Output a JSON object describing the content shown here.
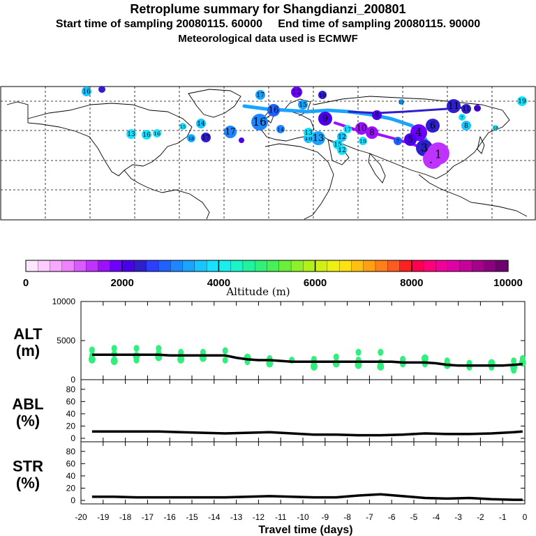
{
  "header": {
    "title": "Retroplume summary for Shangdianzi_200801",
    "line2": "Start time of sampling 20080115. 60000     End time of sampling 20080115. 90000",
    "line3": "Meteorological data used is ECMWF"
  },
  "colorbar": {
    "label": "Altitude (m)",
    "tick_labels": [
      "0",
      "2000",
      "4000",
      "6000",
      "8000",
      "10000"
    ],
    "colors": [
      "#ffe6ff",
      "#ffccff",
      "#f7a8ff",
      "#ee82ff",
      "#d85cff",
      "#c032ff",
      "#9b10ff",
      "#6e00ff",
      "#4a00e8",
      "#2f1ecc",
      "#2b40ff",
      "#1f62ff",
      "#1e86ff",
      "#1aa4ff",
      "#19c4ff",
      "#18e0ff",
      "#18f0ee",
      "#19f5c8",
      "#20f2a0",
      "#2ef07a",
      "#48f058",
      "#6af03a",
      "#8ef028",
      "#b2f01a",
      "#d2f014",
      "#eef010",
      "#ffe010",
      "#ffc010",
      "#ffa010",
      "#ff8018",
      "#ff5a20",
      "#ff2020",
      "#ff0050",
      "#ff007a",
      "#f00098",
      "#e000a8",
      "#c8009c",
      "#a8008c",
      "#8c0080",
      "#6e0070"
    ]
  },
  "map": {
    "cluster_labels": [
      "16",
      "17",
      "12",
      "10",
      "14",
      "15",
      "16",
      "17",
      "16",
      "13",
      "16",
      "15",
      "14",
      "18",
      "17",
      "16",
      "12",
      "17",
      "13",
      "16",
      "9",
      "19",
      "19",
      "15",
      "13",
      "12",
      "11",
      "9",
      "10",
      "8",
      "7",
      "6",
      "4",
      "5",
      "3",
      "2",
      "1",
      "11",
      "10",
      "18",
      "8",
      "7",
      "19",
      "18"
    ]
  },
  "chart_data": [
    {
      "type": "line",
      "panel": "ALT",
      "ylabel": "ALT\n(m)",
      "ylabel_top": "ALT",
      "ylabel_bottom": "(m)",
      "ylim": [
        0,
        10000
      ],
      "xlim": [
        -20,
        0
      ],
      "y_ticks": [
        "0",
        "5000",
        "10000"
      ],
      "x": [
        -19.5,
        -19,
        -18.5,
        -18,
        -17.5,
        -17,
        -16.5,
        -16,
        -15.5,
        -15,
        -14.5,
        -14,
        -13.5,
        -13,
        -12.5,
        -12,
        -11.5,
        -11,
        -10.5,
        -10,
        -9.5,
        -9,
        -8.5,
        -8,
        -7.5,
        -7,
        -6.5,
        -6,
        -5.5,
        -5,
        -4.5,
        -4,
        -3.5,
        -3,
        -2.5,
        -2,
        -1.5,
        -1,
        -0.5,
        -0.1
      ],
      "values": [
        3200,
        3200,
        3200,
        3200,
        3200,
        3200,
        3200,
        3100,
        3100,
        3100,
        3100,
        3100,
        3100,
        2800,
        2600,
        2500,
        2500,
        2400,
        2300,
        2300,
        2300,
        2300,
        2300,
        2300,
        2300,
        2300,
        2300,
        2300,
        2200,
        2200,
        2200,
        2100,
        1900,
        1800,
        1800,
        1800,
        1800,
        1800,
        1900,
        2000
      ],
      "particle_points": [
        [
          -19.5,
          3800
        ],
        [
          -19.5,
          2600
        ],
        [
          -19.5,
          3100
        ],
        [
          -18.5,
          4000
        ],
        [
          -18.5,
          2400
        ],
        [
          -18.5,
          3300
        ],
        [
          -17.5,
          4000
        ],
        [
          -17.5,
          3000
        ],
        [
          -17.5,
          2500
        ],
        [
          -16.5,
          4000
        ],
        [
          -16.5,
          2900
        ],
        [
          -16.5,
          3400
        ],
        [
          -15.5,
          3500
        ],
        [
          -15.5,
          2600
        ],
        [
          -15.5,
          3000
        ],
        [
          -14.5,
          3500
        ],
        [
          -14.5,
          2800
        ],
        [
          -13.5,
          3700
        ],
        [
          -13.5,
          2500
        ],
        [
          -12.5,
          2800
        ],
        [
          -12.5,
          2300
        ],
        [
          -11.5,
          2700
        ],
        [
          -11.5,
          2100
        ],
        [
          -10.5,
          2500
        ],
        [
          -9.5,
          2600
        ],
        [
          -9.5,
          1700
        ],
        [
          -9.5,
          2100
        ],
        [
          -8.5,
          2900
        ],
        [
          -8.5,
          2100
        ],
        [
          -7.5,
          3500
        ],
        [
          -7.5,
          2500
        ],
        [
          -7.5,
          1900
        ],
        [
          -6.5,
          3500
        ],
        [
          -6.5,
          2200
        ],
        [
          -6.5,
          1700
        ],
        [
          -5.5,
          2600
        ],
        [
          -5.5,
          2000
        ],
        [
          -4.5,
          2700
        ],
        [
          -4.5,
          2000
        ],
        [
          -3.5,
          2400
        ],
        [
          -3.5,
          1900
        ],
        [
          -2.5,
          2100
        ],
        [
          -2.5,
          1600
        ],
        [
          -1.5,
          2100
        ],
        [
          -1.5,
          1600
        ],
        [
          -0.5,
          2400
        ],
        [
          -0.5,
          1600
        ],
        [
          -0.5,
          1200
        ],
        [
          -0.1,
          2700
        ],
        [
          -0.1,
          2200
        ]
      ]
    },
    {
      "type": "line",
      "panel": "ABL",
      "ylabel_top": "ABL",
      "ylabel_bottom": "(%)",
      "ylim": [
        0,
        90
      ],
      "xlim": [
        -20,
        0
      ],
      "y_ticks": [
        "0",
        "20",
        "40",
        "60",
        "80"
      ],
      "x": [
        -19.5,
        -18.5,
        -17.5,
        -16.5,
        -15.5,
        -14.5,
        -13.5,
        -12.5,
        -11.5,
        -10.5,
        -9.5,
        -8.5,
        -7.5,
        -6.5,
        -5.5,
        -4.5,
        -3.5,
        -2.5,
        -1.5,
        -0.5,
        -0.1
      ],
      "values": [
        11,
        11,
        11,
        11,
        10,
        9,
        8,
        9,
        10,
        8,
        6,
        6,
        5,
        5,
        6,
        8,
        7,
        7,
        8,
        10,
        11
      ]
    },
    {
      "type": "line",
      "panel": "STR",
      "ylabel_top": "STR",
      "ylabel_bottom": "(%)",
      "ylim": [
        0,
        90
      ],
      "xlim": [
        -20,
        0
      ],
      "y_ticks": [
        "0",
        "20",
        "40",
        "60",
        "80"
      ],
      "xlabel": "Travel time (days)",
      "x_ticks": [
        "-20",
        "-19",
        "-18",
        "-17",
        "-16",
        "-15",
        "-14",
        "-13",
        "-12",
        "-11",
        "-10",
        "-9",
        "-8",
        "-7",
        "-6",
        "-5",
        "-4",
        "-3",
        "-2",
        "-1",
        "0"
      ],
      "x": [
        -19.5,
        -18.5,
        -17.5,
        -16.5,
        -15.5,
        -14.5,
        -13.5,
        -12.5,
        -11.5,
        -10.5,
        -9.5,
        -8.5,
        -7.5,
        -6.5,
        -5.5,
        -4.5,
        -3.5,
        -2.5,
        -1.5,
        -0.5,
        -0.1
      ],
      "values": [
        6,
        6,
        5,
        5,
        5,
        5,
        5,
        6,
        7,
        6,
        5,
        5,
        8,
        10,
        7,
        4,
        3,
        4,
        2,
        1,
        1
      ]
    }
  ]
}
